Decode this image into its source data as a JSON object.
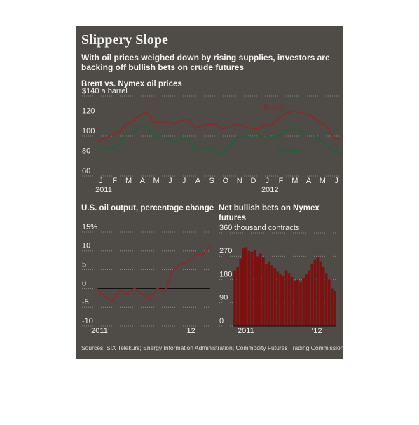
{
  "header": {
    "title": "Slippery Slope",
    "subtitle": "With oil prices weighed down by rising supplies, investors are backing off bullish bets on crude futures"
  },
  "chart_data": [
    {
      "type": "line",
      "title": "Brent vs. Nymex oil prices",
      "categories": [
        "J",
        null,
        "F",
        null,
        "M",
        null,
        "A",
        null,
        "M",
        null,
        "J",
        null,
        "J",
        null,
        "A",
        null,
        "S",
        null,
        "O",
        null,
        "N",
        null,
        "D",
        null,
        "J",
        null,
        "F",
        null,
        "M",
        null,
        "A",
        null,
        "M",
        null,
        "J",
        null
      ],
      "year_labels": [
        "2011",
        "2012"
      ],
      "series": [
        {
          "name": "Brent",
          "color": "#8a2a2a",
          "values": [
            95,
            98,
            101,
            104,
            112,
            115,
            121,
            124,
            114,
            113,
            114,
            112,
            116,
            117,
            108,
            110,
            112,
            111,
            107,
            110,
            112,
            110,
            108,
            107,
            111,
            111,
            118,
            122,
            125,
            124,
            122,
            119,
            114,
            110,
            98,
            96
          ]
        },
        {
          "name": "Nymex",
          "color": "#23603a",
          "values": [
            90,
            89,
            87,
            91,
            102,
            104,
            108,
            110,
            100,
            99,
            98,
            94,
            97,
            97,
            86,
            87,
            88,
            85,
            82,
            90,
            98,
            100,
            99,
            99,
            101,
            99,
            100,
            105,
            107,
            105,
            103,
            103,
            97,
            91,
            84,
            83
          ]
        }
      ],
      "ylim": [
        60,
        140
      ],
      "yticks": [
        60,
        80,
        100,
        120,
        {
          "value": 140,
          "label": "$140 a barrel"
        }
      ],
      "grid": true
    },
    {
      "type": "line",
      "title": "U.S. oil output, percentage change",
      "categories": [
        "2011",
        null,
        null,
        null,
        null,
        null,
        null,
        null,
        null,
        null,
        null,
        null,
        "'12",
        null,
        null,
        null
      ],
      "series": [
        {
          "name": null,
          "color": "#8a2a2a",
          "values": [
            0,
            -2,
            -3.5,
            -0.5,
            -1.5,
            0,
            -1.5,
            -3,
            0,
            -1,
            4.5,
            6.5,
            7,
            9,
            9,
            11.5
          ]
        }
      ],
      "ylim": [
        -10,
        15
      ],
      "yticks": [
        -10,
        -5,
        0,
        5,
        10,
        {
          "value": 15,
          "label": "15%"
        }
      ],
      "grid": true
    },
    {
      "type": "bar",
      "title": "Net bullish bets on Nymex futures",
      "categories": [
        "2011",
        null,
        null,
        null,
        null,
        null,
        null,
        null,
        null,
        null,
        null,
        null,
        null,
        null,
        null,
        null,
        null,
        null,
        null,
        null,
        null,
        null,
        null,
        null,
        null,
        null,
        "'12",
        null,
        null,
        null,
        null,
        null,
        null,
        null,
        null,
        null
      ],
      "values": [
        215,
        230,
        260,
        300,
        305,
        290,
        285,
        295,
        270,
        280,
        265,
        240,
        250,
        235,
        225,
        210,
        200,
        195,
        215,
        205,
        190,
        175,
        180,
        170,
        185,
        200,
        215,
        240,
        255,
        265,
        250,
        230,
        205,
        180,
        145,
        135
      ],
      "color": "#7a1212",
      "ylim": [
        0,
        360
      ],
      "yticks": [
        0,
        90,
        180,
        270,
        {
          "value": 360,
          "label": "360 thousand contracts"
        }
      ],
      "grid": true
    }
  ],
  "source": "Sources: SIX Telekurs; Energy Information Administration; Commodity Futures Trading Commission"
}
